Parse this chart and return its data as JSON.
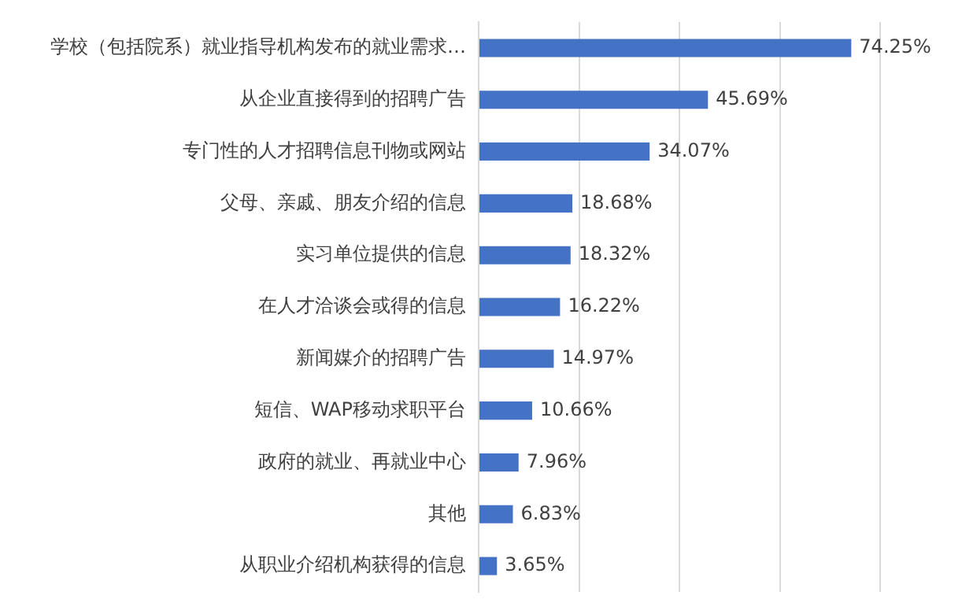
{
  "chart_data": {
    "type": "bar",
    "orientation": "horizontal",
    "categories": [
      "学校（包括院系）就业指导机构发布的就业需求…",
      "从企业直接得到的招聘广告",
      "专门性的人才招聘信息刊物或网站",
      "父母、亲戚、朋友介绍的信息",
      "实习单位提供的信息",
      "在人才洽谈会或得的信息",
      "新闻媒介的招聘广告",
      "短信、WAP移动求职平台",
      "政府的就业、再就业中心",
      "其他",
      "从职业介绍机构获得的信息"
    ],
    "values": [
      74.25,
      45.69,
      34.07,
      18.68,
      18.32,
      16.22,
      14.97,
      10.66,
      7.96,
      6.83,
      3.65
    ],
    "value_labels": [
      "74.25%",
      "45.69%",
      "34.07%",
      "18.68%",
      "18.32%",
      "16.22%",
      "14.97%",
      "10.66%",
      "7.96%",
      "6.83%",
      "3.65%"
    ],
    "color": "#4472c4",
    "xlim": [
      0,
      80
    ],
    "xticks": [
      {
        "value": 0,
        "label": null
      },
      {
        "value": 20,
        "label": null
      },
      {
        "value": 40,
        "label": null
      },
      {
        "value": 60,
        "label": null
      },
      {
        "value": 80,
        "label": null
      }
    ],
    "grid": "x",
    "tick_labels": "y",
    "legend": false
  }
}
